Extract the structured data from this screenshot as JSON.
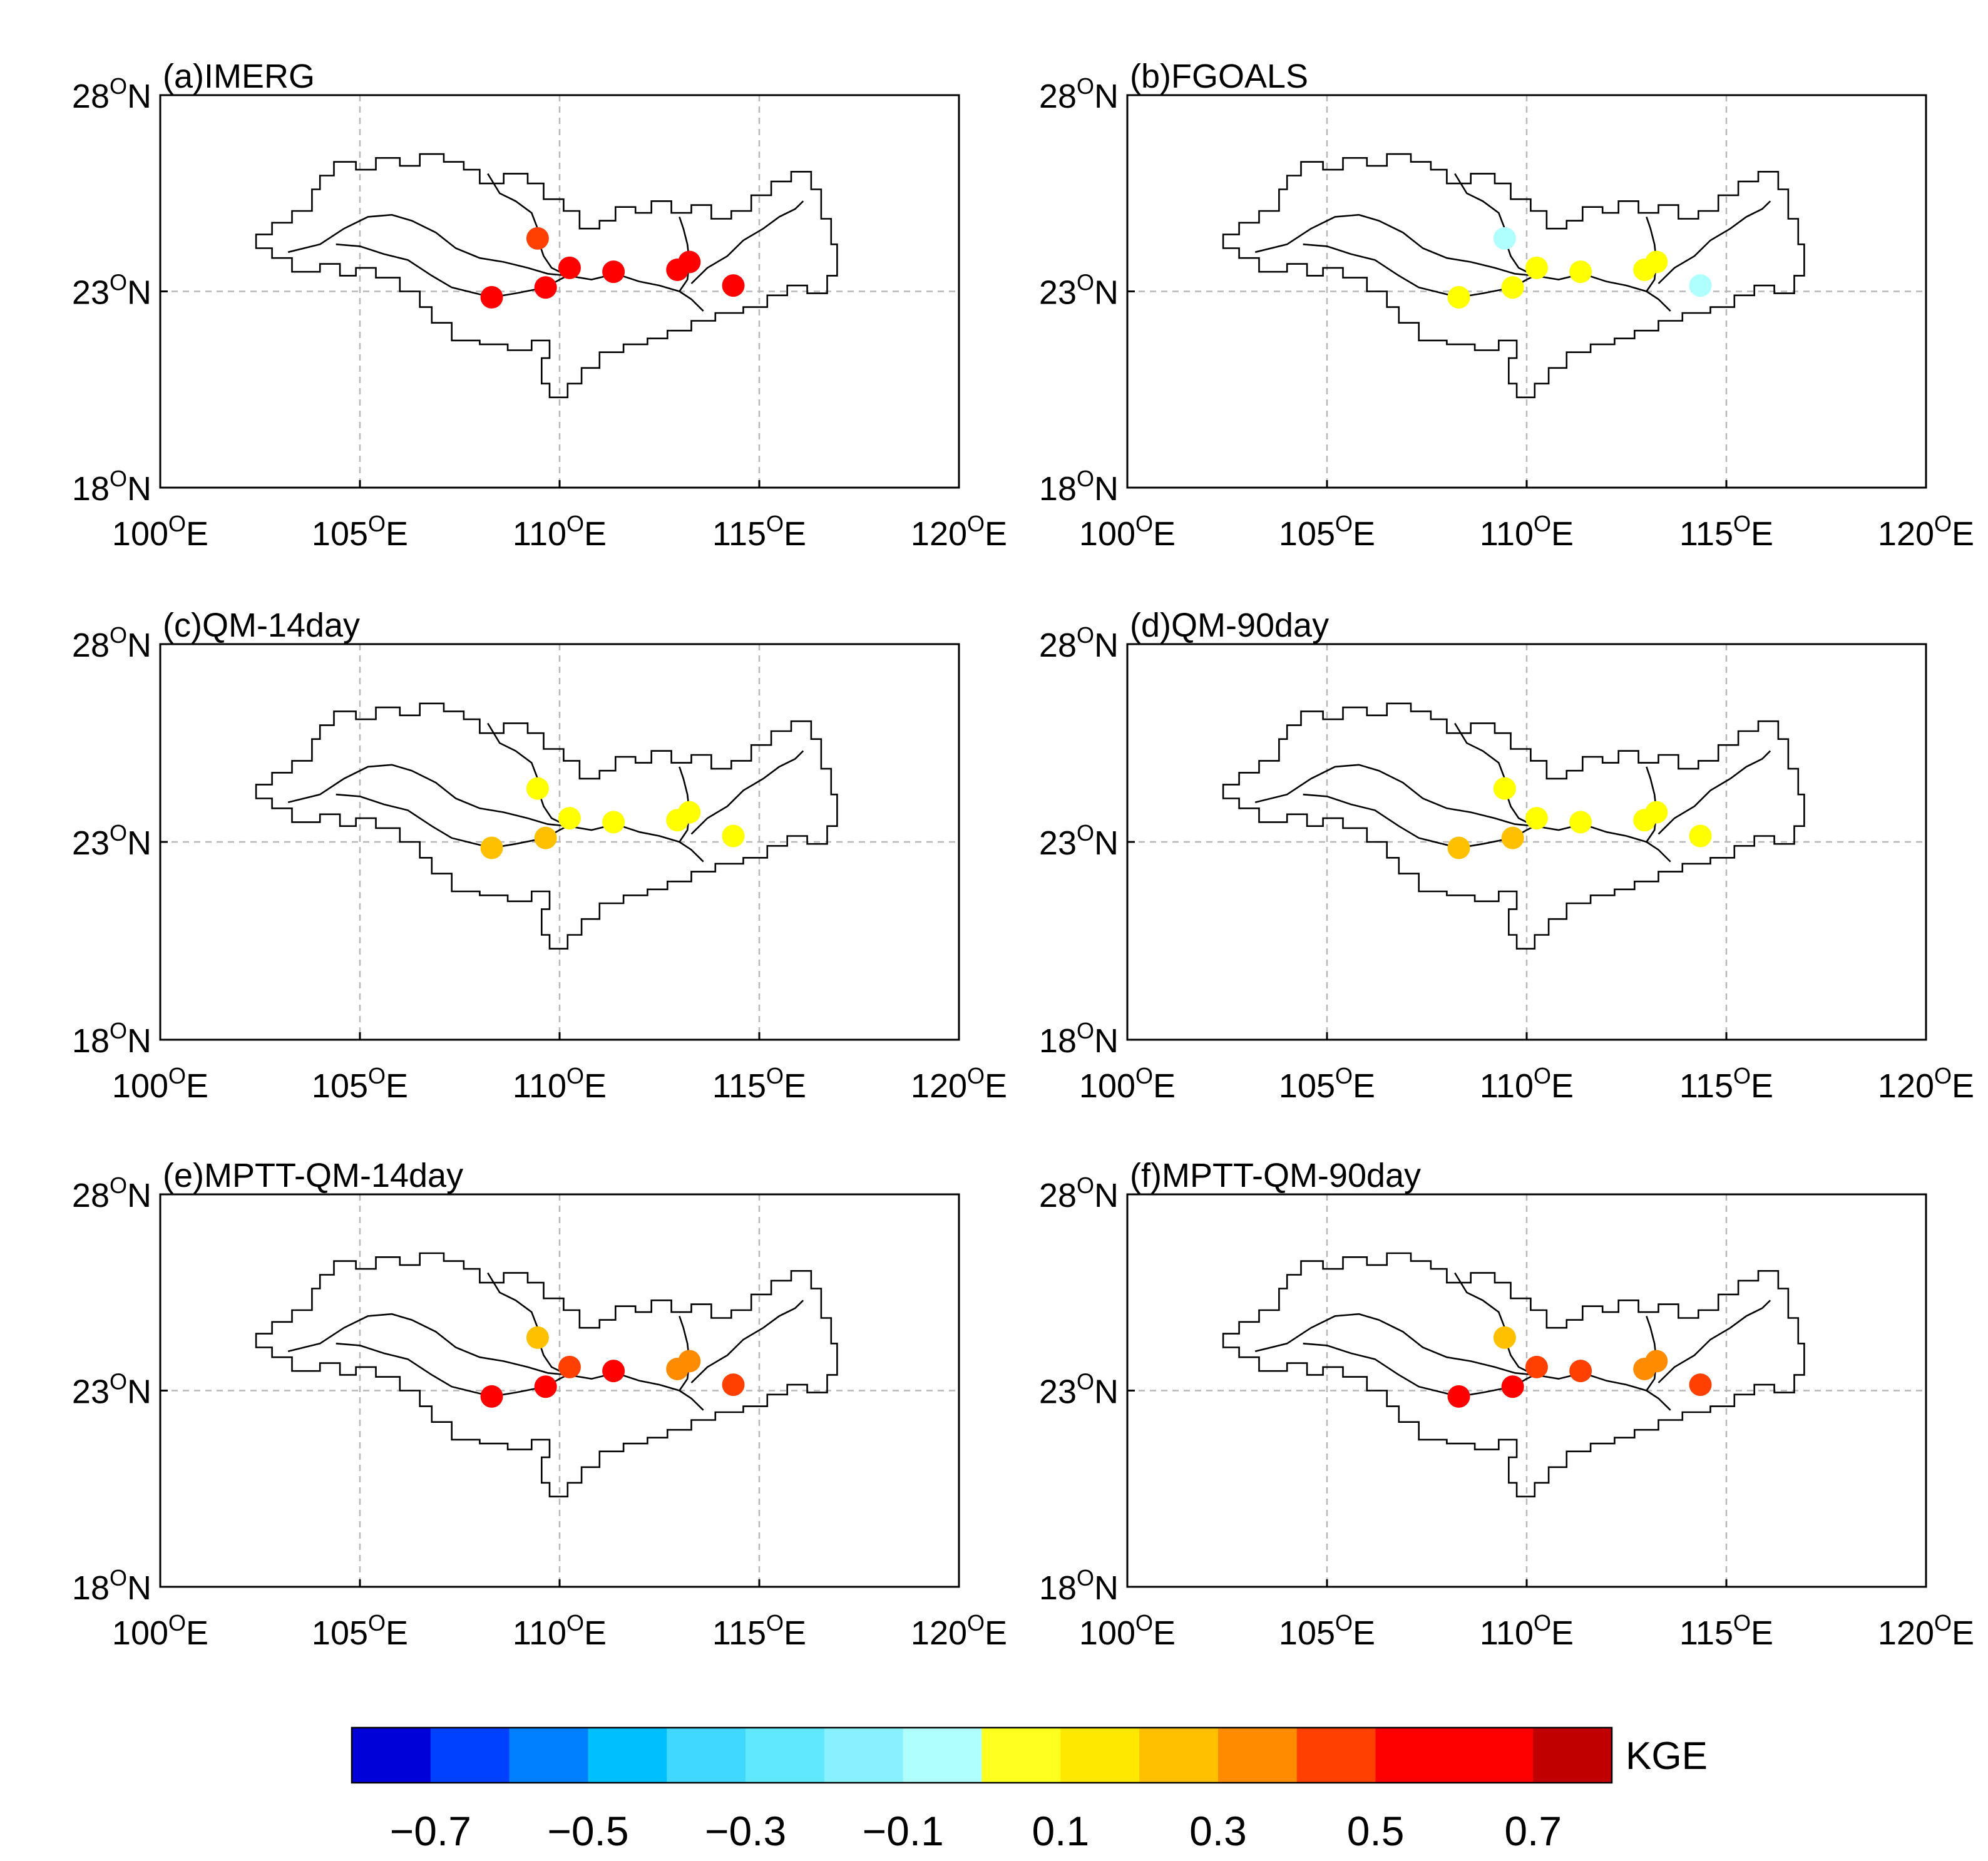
{
  "figure": {
    "x_ticks": [
      {
        "lon": 100,
        "label": "100",
        "unit": "E"
      },
      {
        "lon": 105,
        "label": "105",
        "unit": "E"
      },
      {
        "lon": 110,
        "label": "110",
        "unit": "E"
      },
      {
        "lon": 115,
        "label": "115",
        "unit": "E"
      },
      {
        "lon": 120,
        "label": "120",
        "unit": "E"
      }
    ],
    "y_ticks": [
      {
        "lat": 28,
        "label": "28",
        "unit": "N"
      },
      {
        "lat": 23,
        "label": "23",
        "unit": "N"
      },
      {
        "lat": 18,
        "label": "18",
        "unit": "N"
      }
    ],
    "degree_symbol": "O",
    "gridlines": {
      "lons": [
        105,
        110,
        115
      ],
      "lats": [
        23
      ]
    },
    "lon_range": [
      100,
      120
    ],
    "lat_range": [
      18,
      28
    ],
    "stations": [
      {
        "id": 1,
        "lon": 108.3,
        "lat": 22.85
      },
      {
        "id": 2,
        "lon": 109.65,
        "lat": 23.1
      },
      {
        "id": 3,
        "lon": 110.25,
        "lat": 23.6
      },
      {
        "id": 4,
        "lon": 111.35,
        "lat": 23.5
      },
      {
        "id": 5,
        "lon": 112.95,
        "lat": 23.55
      },
      {
        "id": 6,
        "lon": 113.25,
        "lat": 23.75
      },
      {
        "id": 7,
        "lon": 114.35,
        "lat": 23.15
      },
      {
        "id": 8,
        "lon": 109.45,
        "lat": 24.35
      }
    ],
    "boundary_outline": [
      [
        102.4,
        24.45
      ],
      [
        102.8,
        24.45
      ],
      [
        102.8,
        24.75
      ],
      [
        103.3,
        24.75
      ],
      [
        103.3,
        25.05
      ],
      [
        103.8,
        25.05
      ],
      [
        103.8,
        25.6
      ],
      [
        104.0,
        25.6
      ],
      [
        104.0,
        25.95
      ],
      [
        104.35,
        25.95
      ],
      [
        104.35,
        26.3
      ],
      [
        104.9,
        26.3
      ],
      [
        104.9,
        26.1
      ],
      [
        105.4,
        26.1
      ],
      [
        105.4,
        26.4
      ],
      [
        106.0,
        26.4
      ],
      [
        106.0,
        26.2
      ],
      [
        106.5,
        26.2
      ],
      [
        106.5,
        26.5
      ],
      [
        107.1,
        26.5
      ],
      [
        107.1,
        26.3
      ],
      [
        107.6,
        26.3
      ],
      [
        107.6,
        26.1
      ],
      [
        108.0,
        26.1
      ],
      [
        108.0,
        25.75
      ],
      [
        108.6,
        25.75
      ],
      [
        108.6,
        26.0
      ],
      [
        109.2,
        26.0
      ],
      [
        109.2,
        25.75
      ],
      [
        109.6,
        25.75
      ],
      [
        109.6,
        25.35
      ],
      [
        110.1,
        25.35
      ],
      [
        110.1,
        25.05
      ],
      [
        110.5,
        25.05
      ],
      [
        110.5,
        24.6
      ],
      [
        111.0,
        24.6
      ],
      [
        111.0,
        24.8
      ],
      [
        111.4,
        24.8
      ],
      [
        111.4,
        25.15
      ],
      [
        111.9,
        25.15
      ],
      [
        111.9,
        25.0
      ],
      [
        112.3,
        25.0
      ],
      [
        112.3,
        25.3
      ],
      [
        112.8,
        25.3
      ],
      [
        112.8,
        25.0
      ],
      [
        113.3,
        25.0
      ],
      [
        113.3,
        25.2
      ],
      [
        113.8,
        25.2
      ],
      [
        113.8,
        24.85
      ],
      [
        114.3,
        24.85
      ],
      [
        114.3,
        25.05
      ],
      [
        114.8,
        25.05
      ],
      [
        114.8,
        25.45
      ],
      [
        115.3,
        25.45
      ],
      [
        115.3,
        25.8
      ],
      [
        115.8,
        25.8
      ],
      [
        115.8,
        26.05
      ],
      [
        116.3,
        26.05
      ],
      [
        116.3,
        25.6
      ],
      [
        116.55,
        25.6
      ],
      [
        116.55,
        24.85
      ],
      [
        116.8,
        24.85
      ],
      [
        116.8,
        24.2
      ],
      [
        116.95,
        24.2
      ],
      [
        116.95,
        23.4
      ],
      [
        116.7,
        23.4
      ],
      [
        116.7,
        22.95
      ],
      [
        116.2,
        22.95
      ],
      [
        116.2,
        23.15
      ],
      [
        115.7,
        23.15
      ],
      [
        115.7,
        22.9
      ],
      [
        115.2,
        22.9
      ],
      [
        115.2,
        22.6
      ],
      [
        114.6,
        22.6
      ],
      [
        114.6,
        22.45
      ],
      [
        113.9,
        22.45
      ],
      [
        113.9,
        22.25
      ],
      [
        113.3,
        22.25
      ],
      [
        113.3,
        22.0
      ],
      [
        112.7,
        22.0
      ],
      [
        112.7,
        21.8
      ],
      [
        112.2,
        21.8
      ],
      [
        112.2,
        21.65
      ],
      [
        111.6,
        21.65
      ],
      [
        111.6,
        21.45
      ],
      [
        111.0,
        21.45
      ],
      [
        111.0,
        21.05
      ],
      [
        110.55,
        21.05
      ],
      [
        110.55,
        20.65
      ],
      [
        110.2,
        20.65
      ],
      [
        110.2,
        20.3
      ],
      [
        109.75,
        20.3
      ],
      [
        109.75,
        20.65
      ],
      [
        109.55,
        20.65
      ],
      [
        109.55,
        21.3
      ],
      [
        109.75,
        21.3
      ],
      [
        109.75,
        21.75
      ],
      [
        109.3,
        21.75
      ],
      [
        109.3,
        21.5
      ],
      [
        108.7,
        21.5
      ],
      [
        108.7,
        21.65
      ],
      [
        108.0,
        21.65
      ],
      [
        108.0,
        21.75
      ],
      [
        107.3,
        21.75
      ],
      [
        107.3,
        22.2
      ],
      [
        106.8,
        22.2
      ],
      [
        106.8,
        22.6
      ],
      [
        106.5,
        22.6
      ],
      [
        106.5,
        23.0
      ],
      [
        106.0,
        23.0
      ],
      [
        106.0,
        23.35
      ],
      [
        105.4,
        23.35
      ],
      [
        105.4,
        23.6
      ],
      [
        104.9,
        23.6
      ],
      [
        104.9,
        23.4
      ],
      [
        104.5,
        23.4
      ],
      [
        104.5,
        23.7
      ],
      [
        104.0,
        23.7
      ],
      [
        104.0,
        23.5
      ],
      [
        103.3,
        23.5
      ],
      [
        103.3,
        23.85
      ],
      [
        102.8,
        23.85
      ],
      [
        102.8,
        24.1
      ],
      [
        102.4,
        24.1
      ],
      [
        102.4,
        24.45
      ]
    ],
    "rivers": [
      [
        [
          103.2,
          24.0
        ],
        [
          104.0,
          24.2
        ],
        [
          104.6,
          24.6
        ],
        [
          105.2,
          24.9
        ],
        [
          105.8,
          24.95
        ],
        [
          106.3,
          24.8
        ],
        [
          106.9,
          24.5
        ],
        [
          107.4,
          24.1
        ],
        [
          108.0,
          23.85
        ],
        [
          108.6,
          23.75
        ],
        [
          109.2,
          23.6
        ],
        [
          109.7,
          23.45
        ],
        [
          110.2,
          23.4
        ],
        [
          110.8,
          23.3
        ],
        [
          111.4,
          23.45
        ],
        [
          112.0,
          23.25
        ],
        [
          112.5,
          23.15
        ],
        [
          113.0,
          23.0
        ],
        [
          113.3,
          22.8
        ],
        [
          113.6,
          22.5
        ]
      ],
      [
        [
          104.4,
          24.2
        ],
        [
          105.0,
          24.15
        ],
        [
          105.6,
          23.95
        ],
        [
          106.2,
          23.8
        ],
        [
          106.8,
          23.4
        ],
        [
          107.3,
          23.1
        ],
        [
          107.9,
          22.95
        ],
        [
          108.3,
          22.85
        ],
        [
          108.9,
          22.95
        ],
        [
          109.4,
          23.05
        ],
        [
          109.65,
          23.1
        ],
        [
          110.0,
          23.3
        ],
        [
          110.2,
          23.4
        ]
      ],
      [
        [
          108.2,
          26.0
        ],
        [
          108.5,
          25.5
        ],
        [
          108.9,
          25.3
        ],
        [
          109.3,
          25.0
        ],
        [
          109.45,
          24.6
        ],
        [
          109.45,
          24.35
        ],
        [
          109.6,
          23.9
        ],
        [
          109.8,
          23.6
        ],
        [
          110.2,
          23.4
        ]
      ],
      [
        [
          113.3,
          23.2
        ],
        [
          113.7,
          23.6
        ],
        [
          114.2,
          23.9
        ],
        [
          114.6,
          24.3
        ],
        [
          115.1,
          24.6
        ],
        [
          115.5,
          24.9
        ],
        [
          115.9,
          25.1
        ],
        [
          116.1,
          25.3
        ]
      ],
      [
        [
          113.0,
          23.0
        ],
        [
          113.2,
          23.3
        ],
        [
          113.25,
          23.75
        ],
        [
          113.2,
          24.2
        ],
        [
          113.1,
          24.6
        ],
        [
          113.0,
          24.9
        ]
      ]
    ],
    "panels": [
      {
        "id": "a",
        "title": "(a)IMERG",
        "station_colors": [
          "#ff0000",
          "#ff0000",
          "#ff0000",
          "#ff0000",
          "#ff0000",
          "#ff0000",
          "#ff0000",
          "#ff4000"
        ]
      },
      {
        "id": "b",
        "title": "(b)FGOALS",
        "station_colors": [
          "#ffff00",
          "#ffff00",
          "#ffff00",
          "#ffff00",
          "#ffff00",
          "#ffff00",
          "#b0ffff",
          "#b0ffff"
        ]
      },
      {
        "id": "c",
        "title": "(c)QM-14day",
        "station_colors": [
          "#ffc000",
          "#ffc000",
          "#ffff00",
          "#ffff00",
          "#ffff00",
          "#ffff00",
          "#ffff00",
          "#ffff00"
        ]
      },
      {
        "id": "d",
        "title": "(d)QM-90day",
        "station_colors": [
          "#ffc000",
          "#ffc000",
          "#ffff00",
          "#ffff00",
          "#ffff00",
          "#ffff00",
          "#ffff00",
          "#ffff00"
        ]
      },
      {
        "id": "e",
        "title": "(e)MPTT-QM-14day",
        "station_colors": [
          "#ff0000",
          "#ff0000",
          "#ff4000",
          "#ff0000",
          "#ff8c00",
          "#ff8c00",
          "#ff4000",
          "#ffc000"
        ]
      },
      {
        "id": "f",
        "title": "(f)MPTT-QM-90day",
        "station_colors": [
          "#ff0000",
          "#ff0000",
          "#ff4000",
          "#ff4000",
          "#ff8c00",
          "#ff8c00",
          "#ff4000",
          "#ffc000"
        ]
      }
    ],
    "colorbar": {
      "title": "KGE",
      "bins": [
        -0.8,
        -0.7,
        -0.6,
        -0.5,
        -0.4,
        -0.3,
        -0.2,
        -0.1,
        0.0,
        0.1,
        0.2,
        0.3,
        0.4,
        0.5,
        0.6,
        0.7,
        0.8
      ],
      "colors": [
        "#0000d8",
        "#0040ff",
        "#0080ff",
        "#00bfff",
        "#40d8ff",
        "#60e8ff",
        "#88f0ff",
        "#b0ffff",
        "#ffff20",
        "#ffe800",
        "#ffc000",
        "#ff8c00",
        "#ff4000",
        "#ff0000",
        "#ff0000",
        "#c00000"
      ],
      "ticks": [
        {
          "value": -0.7,
          "label": "−0.7"
        },
        {
          "value": -0.5,
          "label": "−0.5"
        },
        {
          "value": -0.3,
          "label": "−0.3"
        },
        {
          "value": -0.1,
          "label": "−0.1"
        },
        {
          "value": 0.1,
          "label": "0.1"
        },
        {
          "value": 0.3,
          "label": "0.3"
        },
        {
          "value": 0.5,
          "label": "0.5"
        },
        {
          "value": 0.7,
          "label": "0.7"
        }
      ]
    }
  }
}
